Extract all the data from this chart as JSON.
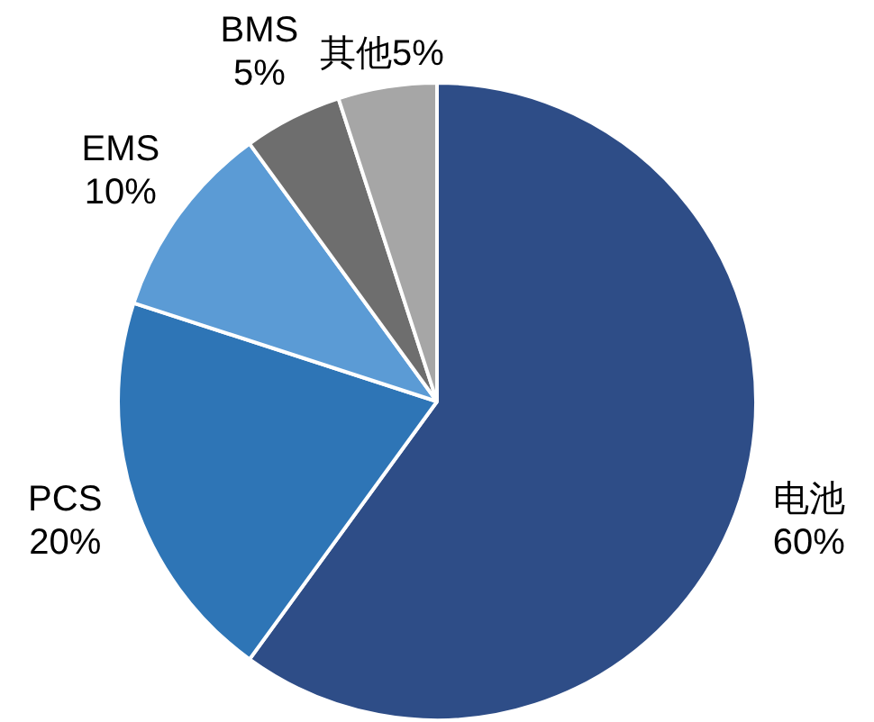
{
  "chart_data": {
    "type": "pie",
    "categories": [
      "电池",
      "PCS",
      "EMS",
      "BMS",
      "其他"
    ],
    "values": [
      60,
      20,
      10,
      5,
      5
    ],
    "value_labels": [
      "60%",
      "20%",
      "10%",
      "5%",
      "5%"
    ],
    "colors": [
      "#2e4d87",
      "#2e75b6",
      "#5b9bd5",
      "#6e6e6e",
      "#a6a6a6"
    ],
    "legend": false
  }
}
